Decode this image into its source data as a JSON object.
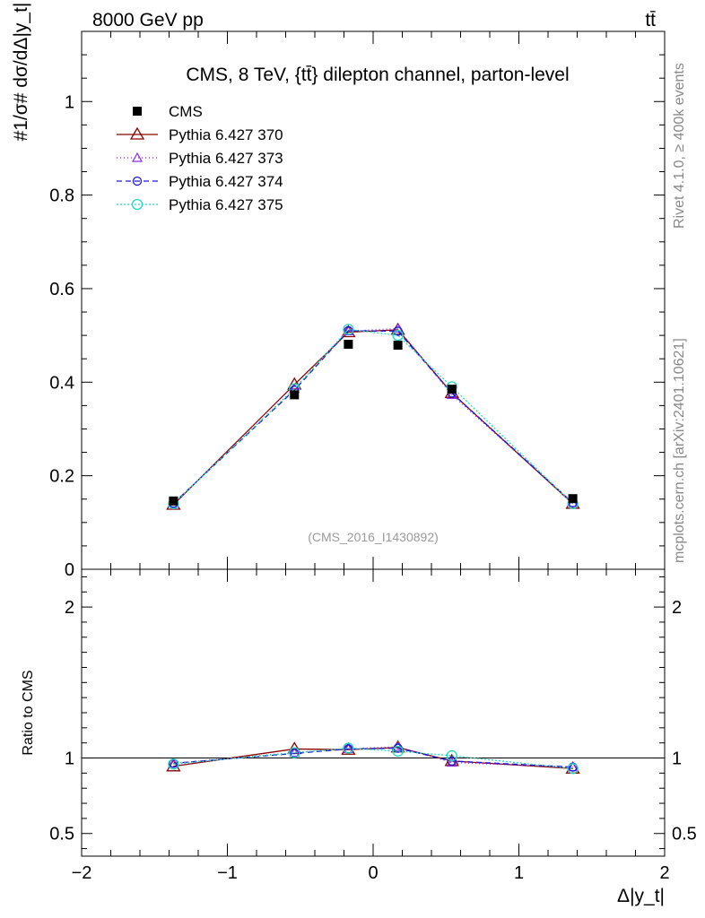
{
  "header": {
    "left": "8000 GeV pp",
    "right": "tt̄"
  },
  "side_labels": {
    "rivet": "Rivet 4.1.0, ≥ 400k events",
    "mcplots": "mcplots.cern.ch [arXiv:2401.10621]"
  },
  "watermark": "(CMS_2016_I1430892)",
  "chart_data": {
    "type": "line",
    "title": "CMS, 8 TeV, {tt̄} dilepton channel, parton-level",
    "xlabel": "Δ|y_t|",
    "ylabel": "#1/σ# dσ/dΔ|y_t|",
    "xlim": [
      -2,
      2
    ],
    "ylim": [
      0,
      1.15
    ],
    "x_ticks": [
      -2,
      -1,
      0,
      1,
      2
    ],
    "x_tick_labels": [
      "−2",
      "−1",
      "0",
      "1",
      "2"
    ],
    "y_ticks": [
      0,
      0.2,
      0.4,
      0.6,
      0.8,
      1
    ],
    "y_tick_labels": [
      "0",
      "0.2",
      "0.4",
      "0.6",
      "0.8",
      "1"
    ],
    "x": [
      -1.37,
      -0.54,
      -0.17,
      0.17,
      0.54,
      1.37
    ],
    "data": {
      "name": "CMS",
      "values": [
        0.146,
        0.373,
        0.481,
        0.479,
        0.385,
        0.151
      ]
    },
    "series": [
      {
        "name": "Pythia 6.427 370",
        "color": "#8b0000",
        "dash": "",
        "marker": "triangle",
        "values": [
          0.138,
          0.395,
          0.507,
          0.512,
          0.377,
          0.14
        ]
      },
      {
        "name": "Pythia 6.427 373",
        "color": "#8a2be2",
        "dash": "1,3",
        "marker": "triangle-small",
        "values": [
          0.141,
          0.386,
          0.509,
          0.515,
          0.373,
          0.142
        ]
      },
      {
        "name": "Pythia 6.427 374",
        "color": "#1a1adb",
        "dash": "6,4",
        "marker": "circle",
        "values": [
          0.141,
          0.383,
          0.51,
          0.509,
          0.377,
          0.142
        ]
      },
      {
        "name": "Pythia 6.427 375",
        "color": "#20d8c0",
        "dash": "2,2",
        "marker": "circle-large",
        "values": [
          0.14,
          0.386,
          0.513,
          0.5,
          0.39,
          0.14
        ]
      }
    ],
    "ratio": {
      "ylabel": "Ratio to CMS",
      "ylim": [
        0.35,
        2.25
      ],
      "y_ticks": [
        0.5,
        1,
        2
      ],
      "y_tick_labels": [
        "0.5",
        "1",
        "2"
      ],
      "series": [
        {
          "name": "Pythia 6.427 370",
          "values": [
            0.945,
            1.06,
            1.055,
            1.07,
            0.98,
            0.93
          ]
        },
        {
          "name": "Pythia 6.427 373",
          "values": [
            0.965,
            1.035,
            1.06,
            1.075,
            0.97,
            0.94
          ]
        },
        {
          "name": "Pythia 6.427 374",
          "values": [
            0.965,
            1.03,
            1.06,
            1.065,
            0.98,
            0.94
          ]
        },
        {
          "name": "Pythia 6.427 375",
          "values": [
            0.96,
            1.035,
            1.065,
            1.045,
            1.015,
            0.93
          ]
        }
      ]
    }
  }
}
